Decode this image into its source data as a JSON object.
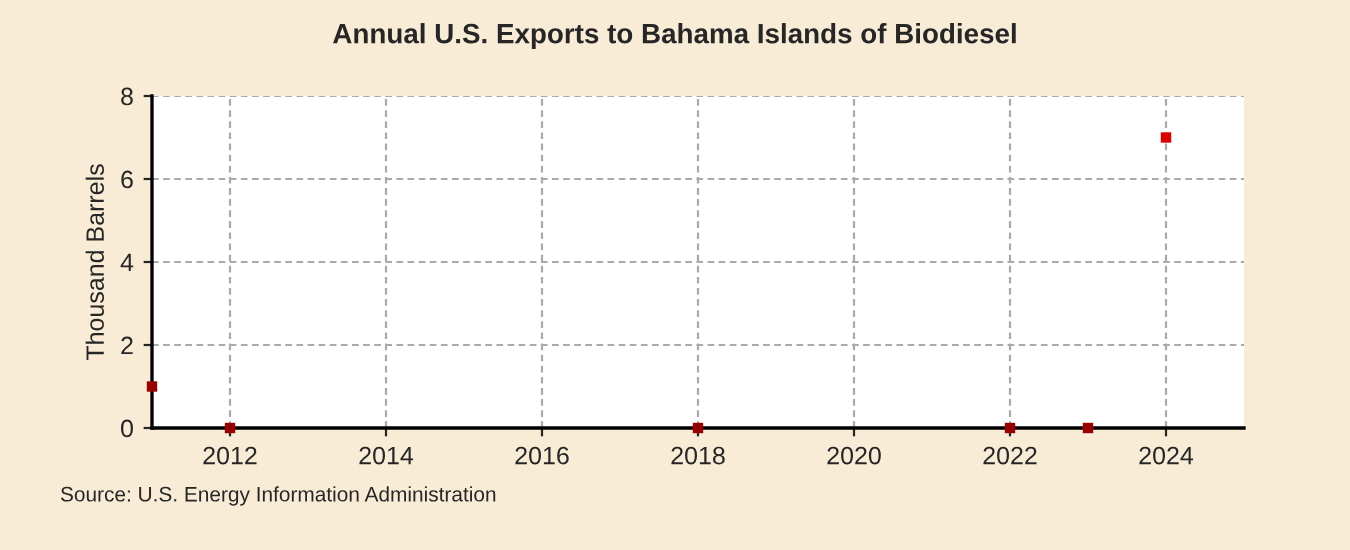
{
  "chart_data": {
    "type": "scatter",
    "title": "Annual U.S. Exports to Bahama Islands of Biodiesel",
    "ylabel": "Thousand Barrels",
    "x": [
      2011,
      2012,
      2018,
      2022,
      2023,
      2024
    ],
    "series": [
      {
        "colors": [
          "#990000",
          "#990000",
          "#990000",
          "#990000",
          "#990000",
          "#dd0000"
        ],
        "values": [
          1,
          0,
          0,
          0,
          0,
          7
        ]
      }
    ],
    "xlim": [
      2011,
      2025
    ],
    "xticks": [
      2012,
      2014,
      2016,
      2018,
      2020,
      2022,
      2024
    ],
    "ylim": [
      0,
      8
    ],
    "yticks": [
      0,
      2,
      4,
      6,
      8
    ],
    "grid": true,
    "marker": "square",
    "annotations": [
      "Source: U.S. Energy Information Administration"
    ]
  }
}
